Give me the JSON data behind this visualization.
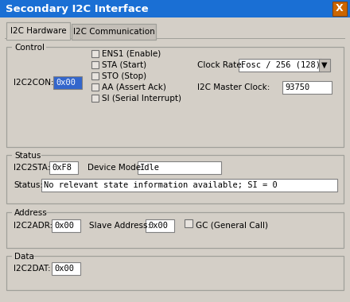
{
  "title": "Secondary I2C Interface",
  "title_bar_color": "#1a6fd4",
  "title_text_color": "#ffffff",
  "close_btn_color": "#cc6600",
  "bg_color": "#d4cfc7",
  "tab_active": "I2C Hardware",
  "tab_inactive": "I2C Communication",
  "checkboxes": [
    "ENS1 (Enable)",
    "STA (Start)",
    "STO (Stop)",
    "AA (Assert Ack)",
    "SI (Serial Interrupt)"
  ],
  "i2c2con_val": "0x00",
  "clock_rate_label": "Clock Rate:",
  "clock_rate_val": "Fosc / 256 (128)",
  "i2c_master_clock_label": "I2C Master Clock:",
  "i2c_master_clock_val": "93750",
  "i2c2sta_label": "I2C2STA:",
  "i2c2sta_val": "0xF8",
  "device_mode_label": "Device Mode:",
  "device_mode_val": "Idle",
  "status_label": "Status:",
  "status_val": "No relevant state information available; SI = 0",
  "i2c2adr_label": "I2C2ADR:",
  "i2c2adr_val": "0x00",
  "slave_addr_label": "Slave Address:",
  "slave_addr_val": "0x00",
  "gc_label": "GC (General Call)",
  "i2c2dat_label": "I2C2DAT:",
  "i2c2dat_val": "0x00",
  "field_bg": "#ffffff",
  "field_highlight_bg": "#3366cc",
  "field_highlight_text": "#ffffff",
  "field_border": "#808080",
  "text_color": "#000000",
  "section_border": "#a0a09a",
  "outer_border": "#5577aa"
}
